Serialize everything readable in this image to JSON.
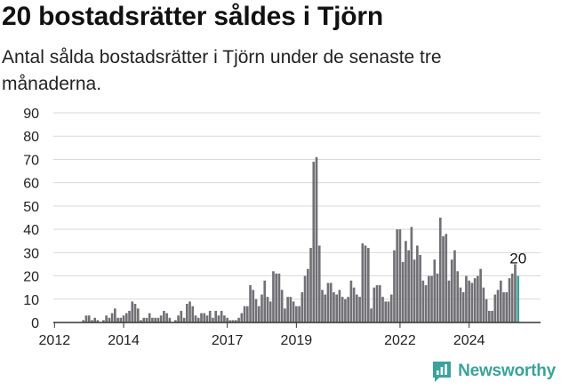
{
  "header": {
    "title": "20 bostadsrätter såldes i Tjörn",
    "subtitle": "Antal sålda bostadsrätter i Tjörn under de senaste tre månaderna."
  },
  "brand": {
    "name": "Newsworthy",
    "color": "#3aa39a"
  },
  "colors": {
    "bar": "#717075",
    "highlight": "#35a59b",
    "grid": "#d9d9d9",
    "axis": "#333333"
  },
  "chart_data": {
    "type": "bar",
    "title": "",
    "xlabel": "",
    "ylabel": "",
    "ylim": [
      0,
      90
    ],
    "yticks": [
      0,
      10,
      20,
      30,
      40,
      50,
      60,
      70,
      80,
      90
    ],
    "xticks": [
      "2012",
      "2014",
      "2017",
      "2019",
      "2022",
      "2024"
    ],
    "highlight_label": "20",
    "values": [
      0,
      0,
      0,
      0,
      0,
      0,
      0,
      0,
      0,
      0,
      1,
      3,
      3,
      1,
      2,
      1,
      0,
      1,
      3,
      2,
      4,
      6,
      2,
      2,
      3,
      4,
      5,
      9,
      8,
      6,
      1,
      2,
      2,
      4,
      2,
      2,
      2,
      3,
      5,
      4,
      2,
      0,
      1,
      3,
      5,
      2,
      8,
      9,
      7,
      3,
      2,
      4,
      4,
      3,
      5,
      2,
      5,
      3,
      5,
      3,
      2,
      1,
      1,
      1,
      2,
      4,
      7,
      7,
      16,
      14,
      10,
      7,
      12,
      18,
      11,
      9,
      22,
      21,
      21,
      14,
      6,
      11,
      11,
      9,
      7,
      7,
      13,
      20,
      23,
      32,
      69,
      71,
      33,
      14,
      12,
      17,
      17,
      13,
      12,
      14,
      11,
      10,
      11,
      18,
      15,
      12,
      11,
      34,
      33,
      32,
      6,
      15,
      16,
      16,
      11,
      9,
      9,
      12,
      31,
      40,
      40,
      26,
      35,
      31,
      41,
      27,
      33,
      29,
      18,
      16,
      20,
      20,
      27,
      21,
      45,
      37,
      38,
      18,
      27,
      31,
      22,
      15,
      13,
      20,
      18,
      17,
      19,
      20,
      23,
      15,
      10,
      5,
      5,
      12,
      14,
      18,
      13,
      13,
      19,
      21,
      25,
      20
    ],
    "dates_first": "2012-01",
    "dates_last": "2025-04"
  }
}
